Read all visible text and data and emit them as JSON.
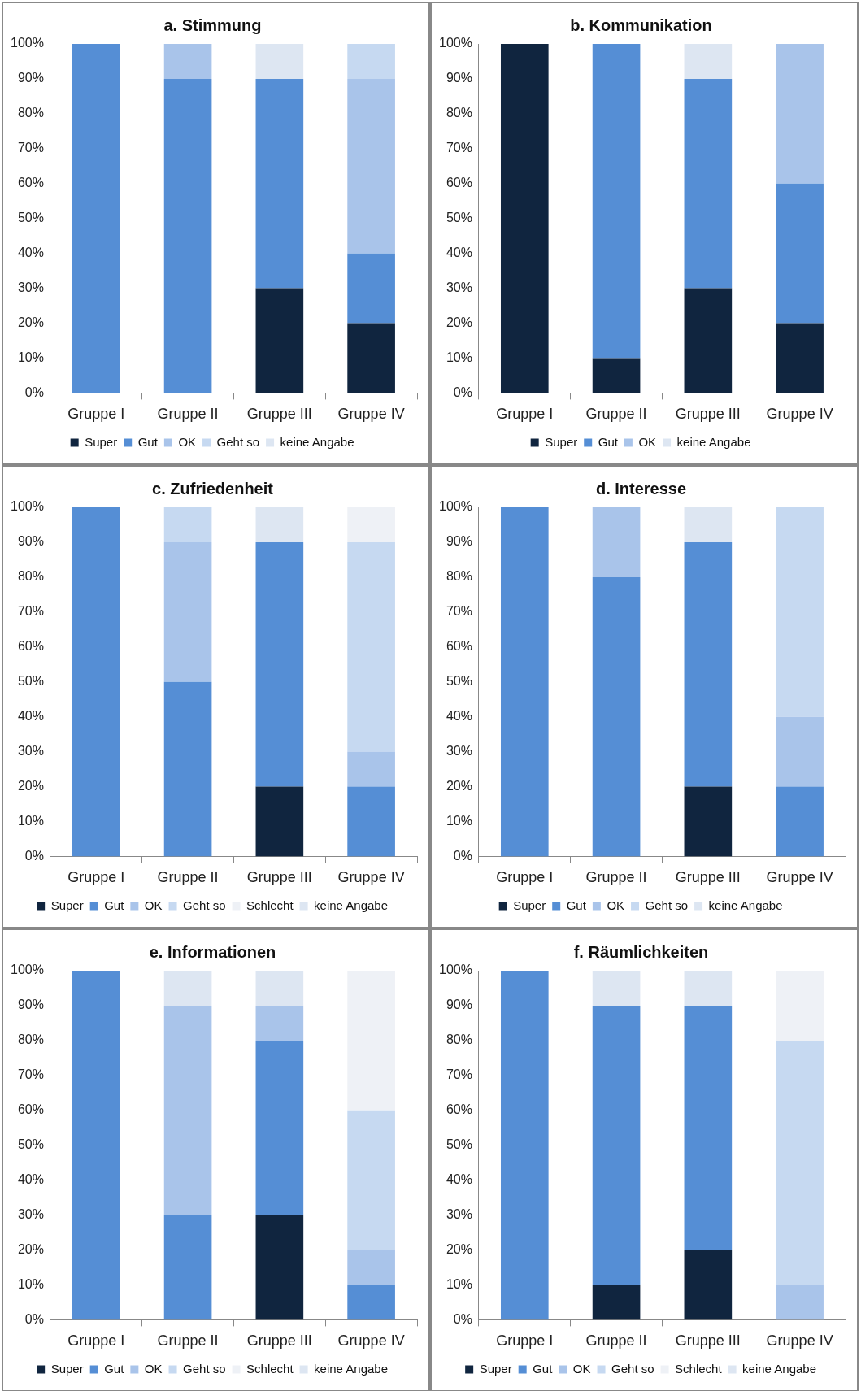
{
  "chart_data": [
    {
      "type": "bar",
      "stacked": true,
      "title": "a. Stimmung",
      "categories": [
        "Gruppe I",
        "Gruppe II",
        "Gruppe III",
        "Gruppe IV"
      ],
      "series": [
        {
          "name": "Super",
          "color": "#10253f",
          "values": [
            0,
            0,
            30,
            20
          ]
        },
        {
          "name": "Gut",
          "color": "#558ed5",
          "values": [
            100,
            90,
            60,
            20
          ]
        },
        {
          "name": "OK",
          "color": "#a9c4ea",
          "values": [
            0,
            10,
            0,
            50
          ]
        },
        {
          "name": "Geht so",
          "color": "#c6d9f1",
          "values": [
            0,
            0,
            0,
            10
          ]
        },
        {
          "name": "keine Angabe",
          "color": "#dde6f2",
          "values": [
            0,
            0,
            10,
            0
          ]
        }
      ],
      "ylim": [
        0,
        100
      ],
      "yticks": [
        {
          "value": 0,
          "label": "0%"
        },
        {
          "value": 10,
          "label": "10%"
        },
        {
          "value": 20,
          "label": "20%"
        },
        {
          "value": 30,
          "label": "30%"
        },
        {
          "value": 40,
          "label": "40%"
        },
        {
          "value": 50,
          "label": "50%"
        },
        {
          "value": 60,
          "label": "60%"
        },
        {
          "value": 70,
          "label": "70%"
        },
        {
          "value": 80,
          "label": "80%"
        },
        {
          "value": 90,
          "label": "90%"
        },
        {
          "value": 100,
          "label": "100%"
        }
      ],
      "grid": false,
      "legend": "bottom"
    },
    {
      "type": "bar",
      "stacked": true,
      "title": "b. Kommunikation",
      "categories": [
        "Gruppe I",
        "Gruppe II",
        "Gruppe III",
        "Gruppe IV"
      ],
      "series": [
        {
          "name": "Super",
          "color": "#10253f",
          "values": [
            100,
            10,
            30,
            20
          ]
        },
        {
          "name": "Gut",
          "color": "#558ed5",
          "values": [
            0,
            90,
            60,
            40
          ]
        },
        {
          "name": "OK",
          "color": "#a9c4ea",
          "values": [
            0,
            0,
            0,
            40
          ]
        },
        {
          "name": "keine Angabe",
          "color": "#dde6f2",
          "values": [
            0,
            0,
            10,
            0
          ]
        }
      ],
      "ylim": [
        0,
        100
      ],
      "yticks": [
        {
          "value": 0,
          "label": "0%"
        },
        {
          "value": 10,
          "label": "10%"
        },
        {
          "value": 20,
          "label": "20%"
        },
        {
          "value": 30,
          "label": "30%"
        },
        {
          "value": 40,
          "label": "40%"
        },
        {
          "value": 50,
          "label": "50%"
        },
        {
          "value": 60,
          "label": "60%"
        },
        {
          "value": 70,
          "label": "70%"
        },
        {
          "value": 80,
          "label": "80%"
        },
        {
          "value": 90,
          "label": "90%"
        },
        {
          "value": 100,
          "label": "100%"
        }
      ],
      "grid": false,
      "legend": "bottom"
    },
    {
      "type": "bar",
      "stacked": true,
      "title": "c. Zufriedenheit",
      "categories": [
        "Gruppe I",
        "Gruppe II",
        "Gruppe III",
        "Gruppe IV"
      ],
      "series": [
        {
          "name": "Super",
          "color": "#10253f",
          "values": [
            0,
            0,
            20,
            0
          ]
        },
        {
          "name": "Gut",
          "color": "#558ed5",
          "values": [
            100,
            50,
            70,
            20
          ]
        },
        {
          "name": "OK",
          "color": "#a9c4ea",
          "values": [
            0,
            40,
            0,
            10
          ]
        },
        {
          "name": "Geht so",
          "color": "#c6d9f1",
          "values": [
            0,
            10,
            0,
            60
          ]
        },
        {
          "name": "Schlecht",
          "color": "#eef1f6",
          "values": [
            0,
            0,
            0,
            10
          ]
        },
        {
          "name": "keine Angabe",
          "color": "#dde6f2",
          "values": [
            0,
            0,
            10,
            0
          ]
        }
      ],
      "ylim": [
        0,
        100
      ],
      "yticks": [
        {
          "value": 0,
          "label": "0%"
        },
        {
          "value": 10,
          "label": "10%"
        },
        {
          "value": 20,
          "label": "20%"
        },
        {
          "value": 30,
          "label": "30%"
        },
        {
          "value": 40,
          "label": "40%"
        },
        {
          "value": 50,
          "label": "50%"
        },
        {
          "value": 60,
          "label": "60%"
        },
        {
          "value": 70,
          "label": "70%"
        },
        {
          "value": 80,
          "label": "80%"
        },
        {
          "value": 90,
          "label": "90%"
        },
        {
          "value": 100,
          "label": "100%"
        }
      ],
      "grid": false,
      "legend": "bottom"
    },
    {
      "type": "bar",
      "stacked": true,
      "title": "d. Interesse",
      "categories": [
        "Gruppe I",
        "Gruppe II",
        "Gruppe III",
        "Gruppe IV"
      ],
      "series": [
        {
          "name": "Super",
          "color": "#10253f",
          "values": [
            0,
            0,
            20,
            0
          ]
        },
        {
          "name": "Gut",
          "color": "#558ed5",
          "values": [
            100,
            80,
            70,
            20
          ]
        },
        {
          "name": "OK",
          "color": "#a9c4ea",
          "values": [
            0,
            20,
            0,
            20
          ]
        },
        {
          "name": "Geht so",
          "color": "#c6d9f1",
          "values": [
            0,
            0,
            0,
            60
          ]
        },
        {
          "name": "keine Angabe",
          "color": "#dde6f2",
          "values": [
            0,
            0,
            10,
            0
          ]
        }
      ],
      "ylim": [
        0,
        100
      ],
      "yticks": [
        {
          "value": 0,
          "label": "0%"
        },
        {
          "value": 10,
          "label": "10%"
        },
        {
          "value": 20,
          "label": "20%"
        },
        {
          "value": 30,
          "label": "30%"
        },
        {
          "value": 40,
          "label": "40%"
        },
        {
          "value": 50,
          "label": "50%"
        },
        {
          "value": 60,
          "label": "60%"
        },
        {
          "value": 70,
          "label": "70%"
        },
        {
          "value": 80,
          "label": "80%"
        },
        {
          "value": 90,
          "label": "90%"
        },
        {
          "value": 100,
          "label": "100%"
        }
      ],
      "grid": false,
      "legend": "bottom"
    },
    {
      "type": "bar",
      "stacked": true,
      "title": "e. Informationen",
      "categories": [
        "Gruppe I",
        "Gruppe II",
        "Gruppe III",
        "Gruppe IV"
      ],
      "series": [
        {
          "name": "Super",
          "color": "#10253f",
          "values": [
            0,
            0,
            30,
            0
          ]
        },
        {
          "name": "Gut",
          "color": "#558ed5",
          "values": [
            100,
            30,
            50,
            10
          ]
        },
        {
          "name": "OK",
          "color": "#a9c4ea",
          "values": [
            0,
            60,
            10,
            10
          ]
        },
        {
          "name": "Geht so",
          "color": "#c6d9f1",
          "values": [
            0,
            0,
            0,
            40
          ]
        },
        {
          "name": "Schlecht",
          "color": "#eef1f6",
          "values": [
            0,
            0,
            0,
            40
          ]
        },
        {
          "name": "keine Angabe",
          "color": "#dde6f2",
          "values": [
            0,
            10,
            10,
            0
          ]
        }
      ],
      "ylim": [
        0,
        100
      ],
      "yticks": [
        {
          "value": 0,
          "label": "0%"
        },
        {
          "value": 10,
          "label": "10%"
        },
        {
          "value": 20,
          "label": "20%"
        },
        {
          "value": 30,
          "label": "30%"
        },
        {
          "value": 40,
          "label": "40%"
        },
        {
          "value": 50,
          "label": "50%"
        },
        {
          "value": 60,
          "label": "60%"
        },
        {
          "value": 70,
          "label": "70%"
        },
        {
          "value": 80,
          "label": "80%"
        },
        {
          "value": 90,
          "label": "90%"
        },
        {
          "value": 100,
          "label": "100%"
        }
      ],
      "grid": false,
      "legend": "bottom"
    },
    {
      "type": "bar",
      "stacked": true,
      "title": "f. Räumlichkeiten",
      "categories": [
        "Gruppe I",
        "Gruppe II",
        "Gruppe III",
        "Gruppe IV"
      ],
      "series": [
        {
          "name": "Super",
          "color": "#10253f",
          "values": [
            0,
            10,
            20,
            0
          ]
        },
        {
          "name": "Gut",
          "color": "#558ed5",
          "values": [
            100,
            80,
            70,
            0
          ]
        },
        {
          "name": "OK",
          "color": "#a9c4ea",
          "values": [
            0,
            0,
            0,
            10
          ]
        },
        {
          "name": "Geht so",
          "color": "#c6d9f1",
          "values": [
            0,
            0,
            0,
            70
          ]
        },
        {
          "name": "Schlecht",
          "color": "#eef1f6",
          "values": [
            0,
            0,
            0,
            20
          ]
        },
        {
          "name": "keine Angabe",
          "color": "#dde6f2",
          "values": [
            0,
            10,
            10,
            0
          ]
        }
      ],
      "ylim": [
        0,
        100
      ],
      "yticks": [
        {
          "value": 0,
          "label": "0%"
        },
        {
          "value": 10,
          "label": "10%"
        },
        {
          "value": 20,
          "label": "20%"
        },
        {
          "value": 30,
          "label": "30%"
        },
        {
          "value": 40,
          "label": "40%"
        },
        {
          "value": 50,
          "label": "50%"
        },
        {
          "value": 60,
          "label": "60%"
        },
        {
          "value": 70,
          "label": "70%"
        },
        {
          "value": 80,
          "label": "80%"
        },
        {
          "value": 90,
          "label": "90%"
        },
        {
          "value": 100,
          "label": "100%"
        }
      ],
      "grid": false,
      "legend": "bottom"
    }
  ]
}
